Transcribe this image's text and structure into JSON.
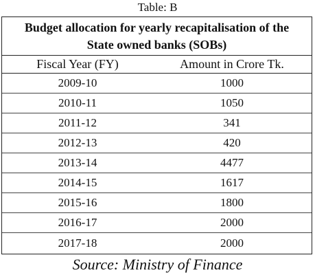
{
  "caption": "Table: B",
  "table": {
    "title": "Budget allocation for yearly recapitalisation of the State owned banks (SOBs)",
    "columns": [
      "Fiscal Year (FY)",
      "Amount in Crore Tk."
    ],
    "rows": [
      [
        "2009-10",
        1000
      ],
      [
        "2010-11",
        1050
      ],
      [
        "2011-12",
        341
      ],
      [
        "2012-13",
        420
      ],
      [
        "2013-14",
        4477
      ],
      [
        "2014-15",
        1617
      ],
      [
        "2015-16",
        1800
      ],
      [
        "2016-17",
        2000
      ],
      [
        "2017-18",
        2000
      ]
    ]
  },
  "source": "Source: Ministry of Finance"
}
